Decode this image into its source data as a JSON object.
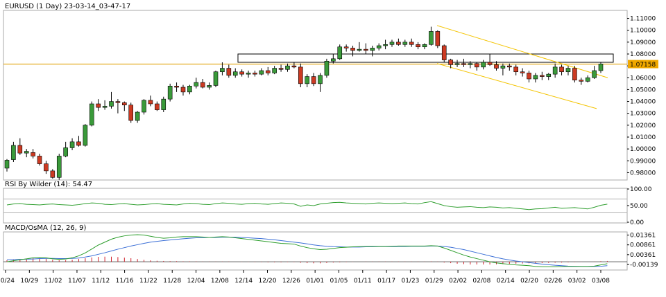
{
  "chart_data": {
    "type": "candlestick",
    "title": "EURUSD (1 Day) 23-03-14_03-47-17",
    "last_price_label": "1.07158",
    "last_price": 1.07158,
    "ylim": [
      0.975,
      1.115
    ],
    "y_ticks": [
      "1.11000",
      "1.10000",
      "1.09000",
      "1.08000",
      "1.07000",
      "1.06000",
      "1.05000",
      "1.04000",
      "1.03000",
      "1.02000",
      "1.01000",
      "1.00000",
      "0.99000",
      "0.98000"
    ],
    "x_ticks": [
      "10/24",
      "10/29",
      "11/02",
      "11/07",
      "11/12",
      "11/16",
      "11/22",
      "11/28",
      "12/04",
      "12/08",
      "12/14",
      "12/20",
      "12/26",
      "01/01",
      "01/05",
      "01/11",
      "01/17",
      "01/23",
      "01/29",
      "02/02",
      "02/08",
      "02/14",
      "02/20",
      "02/26",
      "03/02",
      "03/08"
    ],
    "candles": [
      {
        "o": 0.9838,
        "h": 0.9915,
        "l": 0.981,
        "c": 0.9905
      },
      {
        "o": 0.991,
        "h": 1.006,
        "l": 0.989,
        "c": 1.003
      },
      {
        "o": 1.003,
        "h": 1.009,
        "l": 0.995,
        "c": 0.9965
      },
      {
        "o": 0.9965,
        "h": 1.0,
        "l": 0.993,
        "c": 0.998
      },
      {
        "o": 0.997,
        "h": 1.0,
        "l": 0.992,
        "c": 0.994
      },
      {
        "o": 0.994,
        "h": 0.996,
        "l": 0.986,
        "c": 0.9875
      },
      {
        "o": 0.9875,
        "h": 0.99,
        "l": 0.979,
        "c": 0.9815
      },
      {
        "o": 0.9815,
        "h": 0.983,
        "l": 0.975,
        "c": 0.976
      },
      {
        "o": 0.976,
        "h": 0.996,
        "l": 0.974,
        "c": 0.994
      },
      {
        "o": 0.994,
        "h": 1.006,
        "l": 0.993,
        "c": 1.001
      },
      {
        "o": 1.001,
        "h": 1.009,
        "l": 0.999,
        "c": 1.006
      },
      {
        "o": 1.006,
        "h": 1.011,
        "l": 1.002,
        "c": 1.003
      },
      {
        "o": 1.003,
        "h": 1.021,
        "l": 1.002,
        "c": 1.02
      },
      {
        "o": 1.02,
        "h": 1.04,
        "l": 1.019,
        "c": 1.038
      },
      {
        "o": 1.038,
        "h": 1.042,
        "l": 1.032,
        "c": 1.035
      },
      {
        "o": 1.035,
        "h": 1.041,
        "l": 1.033,
        "c": 1.036
      },
      {
        "o": 1.036,
        "h": 1.048,
        "l": 1.034,
        "c": 1.04
      },
      {
        "o": 1.04,
        "h": 1.042,
        "l": 1.03,
        "c": 1.039
      },
      {
        "o": 1.039,
        "h": 1.04,
        "l": 1.032,
        "c": 1.037
      },
      {
        "o": 1.037,
        "h": 1.039,
        "l": 1.022,
        "c": 1.024
      },
      {
        "o": 1.024,
        "h": 1.032,
        "l": 1.022,
        "c": 1.031
      },
      {
        "o": 1.031,
        "h": 1.042,
        "l": 1.029,
        "c": 1.041
      },
      {
        "o": 1.041,
        "h": 1.045,
        "l": 1.036,
        "c": 1.038
      },
      {
        "o": 1.038,
        "h": 1.04,
        "l": 1.032,
        "c": 1.033
      },
      {
        "o": 1.033,
        "h": 1.044,
        "l": 1.031,
        "c": 1.042
      },
      {
        "o": 1.042,
        "h": 1.055,
        "l": 1.04,
        "c": 1.053
      },
      {
        "o": 1.053,
        "h": 1.056,
        "l": 1.048,
        "c": 1.052
      },
      {
        "o": 1.052,
        "h": 1.054,
        "l": 1.045,
        "c": 1.048
      },
      {
        "o": 1.048,
        "h": 1.054,
        "l": 1.046,
        "c": 1.053
      },
      {
        "o": 1.053,
        "h": 1.06,
        "l": 1.051,
        "c": 1.056
      },
      {
        "o": 1.056,
        "h": 1.059,
        "l": 1.051,
        "c": 1.052
      },
      {
        "o": 1.052,
        "h": 1.056,
        "l": 1.05,
        "c": 1.0535
      },
      {
        "o": 1.0535,
        "h": 1.066,
        "l": 1.052,
        "c": 1.065
      },
      {
        "o": 1.065,
        "h": 1.073,
        "l": 1.062,
        "c": 1.068
      },
      {
        "o": 1.068,
        "h": 1.071,
        "l": 1.06,
        "c": 1.062
      },
      {
        "o": 1.062,
        "h": 1.068,
        "l": 1.06,
        "c": 1.065
      },
      {
        "o": 1.065,
        "h": 1.067,
        "l": 1.061,
        "c": 1.063
      },
      {
        "o": 1.063,
        "h": 1.066,
        "l": 1.06,
        "c": 1.064
      },
      {
        "o": 1.064,
        "h": 1.066,
        "l": 1.061,
        "c": 1.063
      },
      {
        "o": 1.063,
        "h": 1.068,
        "l": 1.062,
        "c": 1.066
      },
      {
        "o": 1.066,
        "h": 1.069,
        "l": 1.062,
        "c": 1.064
      },
      {
        "o": 1.064,
        "h": 1.07,
        "l": 1.063,
        "c": 1.068
      },
      {
        "o": 1.068,
        "h": 1.071,
        "l": 1.065,
        "c": 1.067
      },
      {
        "o": 1.067,
        "h": 1.072,
        "l": 1.065,
        "c": 1.07
      },
      {
        "o": 1.07,
        "h": 1.073,
        "l": 1.068,
        "c": 1.069
      },
      {
        "o": 1.069,
        "h": 1.072,
        "l": 1.052,
        "c": 1.055
      },
      {
        "o": 1.055,
        "h": 1.063,
        "l": 1.052,
        "c": 1.061
      },
      {
        "o": 1.061,
        "h": 1.064,
        "l": 1.053,
        "c": 1.055
      },
      {
        "o": 1.055,
        "h": 1.064,
        "l": 1.048,
        "c": 1.062
      },
      {
        "o": 1.062,
        "h": 1.076,
        "l": 1.06,
        "c": 1.074
      },
      {
        "o": 1.074,
        "h": 1.08,
        "l": 1.072,
        "c": 1.076
      },
      {
        "o": 1.076,
        "h": 1.088,
        "l": 1.075,
        "c": 1.086
      },
      {
        "o": 1.086,
        "h": 1.088,
        "l": 1.082,
        "c": 1.085
      },
      {
        "o": 1.085,
        "h": 1.087,
        "l": 1.078,
        "c": 1.083
      },
      {
        "o": 1.083,
        "h": 1.09,
        "l": 1.082,
        "c": 1.084
      },
      {
        "o": 1.084,
        "h": 1.089,
        "l": 1.08,
        "c": 1.083
      },
      {
        "o": 1.083,
        "h": 1.087,
        "l": 1.078,
        "c": 1.085
      },
      {
        "o": 1.085,
        "h": 1.089,
        "l": 1.083,
        "c": 1.087
      },
      {
        "o": 1.087,
        "h": 1.092,
        "l": 1.084,
        "c": 1.088
      },
      {
        "o": 1.088,
        "h": 1.092,
        "l": 1.086,
        "c": 1.09
      },
      {
        "o": 1.09,
        "h": 1.093,
        "l": 1.087,
        "c": 1.088
      },
      {
        "o": 1.088,
        "h": 1.092,
        "l": 1.086,
        "c": 1.09
      },
      {
        "o": 1.09,
        "h": 1.093,
        "l": 1.086,
        "c": 1.088
      },
      {
        "o": 1.088,
        "h": 1.09,
        "l": 1.084,
        "c": 1.086
      },
      {
        "o": 1.086,
        "h": 1.089,
        "l": 1.084,
        "c": 1.088
      },
      {
        "o": 1.088,
        "h": 1.103,
        "l": 1.087,
        "c": 1.099
      },
      {
        "o": 1.099,
        "h": 1.1,
        "l": 1.085,
        "c": 1.087
      },
      {
        "o": 1.087,
        "h": 1.088,
        "l": 1.073,
        "c": 1.075
      },
      {
        "o": 1.075,
        "h": 1.076,
        "l": 1.068,
        "c": 1.071
      },
      {
        "o": 1.071,
        "h": 1.075,
        "l": 1.069,
        "c": 1.072
      },
      {
        "o": 1.072,
        "h": 1.076,
        "l": 1.069,
        "c": 1.071
      },
      {
        "o": 1.071,
        "h": 1.074,
        "l": 1.068,
        "c": 1.072
      },
      {
        "o": 1.072,
        "h": 1.073,
        "l": 1.066,
        "c": 1.069
      },
      {
        "o": 1.069,
        "h": 1.075,
        "l": 1.067,
        "c": 1.073
      },
      {
        "o": 1.073,
        "h": 1.08,
        "l": 1.07,
        "c": 1.071
      },
      {
        "o": 1.071,
        "h": 1.074,
        "l": 1.066,
        "c": 1.068
      },
      {
        "o": 1.068,
        "h": 1.072,
        "l": 1.062,
        "c": 1.07
      },
      {
        "o": 1.07,
        "h": 1.072,
        "l": 1.066,
        "c": 1.069
      },
      {
        "o": 1.069,
        "h": 1.071,
        "l": 1.062,
        "c": 1.065
      },
      {
        "o": 1.065,
        "h": 1.068,
        "l": 1.061,
        "c": 1.064
      },
      {
        "o": 1.064,
        "h": 1.066,
        "l": 1.056,
        "c": 1.059
      },
      {
        "o": 1.059,
        "h": 1.064,
        "l": 1.056,
        "c": 1.062
      },
      {
        "o": 1.062,
        "h": 1.065,
        "l": 1.058,
        "c": 1.061
      },
      {
        "o": 1.061,
        "h": 1.064,
        "l": 1.058,
        "c": 1.063
      },
      {
        "o": 1.063,
        "h": 1.072,
        "l": 1.06,
        "c": 1.069
      },
      {
        "o": 1.069,
        "h": 1.071,
        "l": 1.062,
        "c": 1.065
      },
      {
        "o": 1.065,
        "h": 1.07,
        "l": 1.062,
        "c": 1.068
      },
      {
        "o": 1.068,
        "h": 1.07,
        "l": 1.056,
        "c": 1.058
      },
      {
        "o": 1.058,
        "h": 1.06,
        "l": 1.054,
        "c": 1.057
      },
      {
        "o": 1.057,
        "h": 1.062,
        "l": 1.056,
        "c": 1.06
      },
      {
        "o": 1.06,
        "h": 1.07,
        "l": 1.059,
        "c": 1.066
      },
      {
        "o": 1.066,
        "h": 1.073,
        "l": 1.064,
        "c": 1.0716
      }
    ],
    "resistance_box": {
      "from": 1.073,
      "to": 1.08
    },
    "horizontal_line": 1.0715,
    "channel": {
      "upper": [
        1.104,
        1.06
      ],
      "lower": [
        1.072,
        1.034
      ]
    },
    "rsi": {
      "label": "RSI By Wilder (14): 54.47",
      "value": 54.47,
      "ylim": [
        0,
        100
      ],
      "levels": [
        70,
        30
      ],
      "y_ticks": [
        "100.00",
        "50.00",
        "0.00"
      ],
      "values": [
        52,
        55,
        56,
        54,
        53,
        52,
        54,
        55,
        53,
        52,
        51,
        53,
        56,
        58,
        57,
        54,
        53,
        55,
        56,
        54,
        52,
        53,
        55,
        56,
        54,
        53,
        52,
        55,
        57,
        56,
        54,
        53,
        56,
        58,
        57,
        55,
        54,
        56,
        57,
        55,
        54,
        56,
        58,
        57,
        55,
        48,
        52,
        50,
        55,
        57,
        59,
        60,
        58,
        57,
        56,
        55,
        57,
        58,
        57,
        56,
        57,
        58,
        56,
        55,
        59,
        62,
        56,
        50,
        47,
        45,
        46,
        47,
        45,
        44,
        46,
        45,
        43,
        44,
        42,
        40,
        38,
        40,
        41,
        43,
        45,
        42,
        43,
        44,
        42,
        40,
        45,
        51,
        54.47
      ]
    },
    "macd": {
      "label": "MACD/OsMA (12, 26, 9)",
      "ylim": [
        -0.0035,
        0.0145
      ],
      "y_ticks": [
        "0.01361",
        "0.00861",
        "0.00361",
        "-0.00139"
      ],
      "macd_values": [
        0.0,
        0.0005,
        0.001,
        0.0015,
        0.002,
        0.0022,
        0.002,
        0.0015,
        0.0012,
        0.0014,
        0.002,
        0.003,
        0.0045,
        0.0065,
        0.0085,
        0.01,
        0.0115,
        0.0125,
        0.0132,
        0.0136,
        0.0138,
        0.0136,
        0.013,
        0.0124,
        0.012,
        0.0122,
        0.0126,
        0.0128,
        0.0128,
        0.0128,
        0.0126,
        0.0124,
        0.0126,
        0.0128,
        0.0126,
        0.0122,
        0.0118,
        0.0114,
        0.011,
        0.0106,
        0.0102,
        0.0098,
        0.0094,
        0.0092,
        0.009,
        0.008,
        0.0072,
        0.0066,
        0.0062,
        0.0064,
        0.0068,
        0.0072,
        0.0074,
        0.0076,
        0.0077,
        0.0078,
        0.0078,
        0.0078,
        0.0078,
        0.0079,
        0.008,
        0.008,
        0.008,
        0.008,
        0.008,
        0.0082,
        0.008,
        0.007,
        0.0058,
        0.0046,
        0.0034,
        0.0024,
        0.0016,
        0.0008,
        0.0,
        -0.0006,
        -0.001,
        -0.0013,
        -0.0016,
        -0.0018,
        -0.002,
        -0.0024,
        -0.0026,
        -0.0026,
        -0.0026,
        -0.0025,
        -0.0024,
        -0.0024,
        -0.0024,
        -0.0024,
        -0.0022,
        -0.0016,
        -0.001
      ],
      "signal_values": [
        0.001,
        0.0011,
        0.0012,
        0.0013,
        0.0014,
        0.0016,
        0.0017,
        0.0017,
        0.0016,
        0.0016,
        0.0017,
        0.0019,
        0.0024,
        0.003,
        0.0038,
        0.0046,
        0.0055,
        0.0064,
        0.0072,
        0.008,
        0.0087,
        0.0094,
        0.01,
        0.0104,
        0.0108,
        0.0111,
        0.0114,
        0.0117,
        0.012,
        0.0122,
        0.0123,
        0.0124,
        0.0124,
        0.0125,
        0.0125,
        0.0125,
        0.0124,
        0.0122,
        0.012,
        0.0118,
        0.0115,
        0.0112,
        0.0108,
        0.0104,
        0.01,
        0.0096,
        0.0091,
        0.0086,
        0.0082,
        0.0079,
        0.0077,
        0.0076,
        0.0075,
        0.0075,
        0.0075,
        0.0076,
        0.0076,
        0.0077,
        0.0077,
        0.0077,
        0.0078,
        0.0078,
        0.0079,
        0.0079,
        0.0079,
        0.008,
        0.008,
        0.0078,
        0.0074,
        0.0068,
        0.0062,
        0.0054,
        0.0046,
        0.0038,
        0.003,
        0.0022,
        0.0015,
        0.0009,
        0.0004,
        0.0,
        -0.0004,
        -0.0008,
        -0.0012,
        -0.0015,
        -0.0018,
        -0.002,
        -0.0022,
        -0.0023,
        -0.0024,
        -0.0024,
        -0.0024,
        -0.0023,
        -0.002
      ],
      "osma_values": [
        0.0008,
        0.0009,
        0.0012,
        0.0015,
        0.0018,
        0.0018,
        0.0015,
        0.001,
        0.0008,
        0.0008,
        0.001,
        0.0014,
        0.0018,
        0.0022,
        0.0025,
        0.0026,
        0.0026,
        0.0024,
        0.0021,
        0.0018,
        0.0014,
        0.001,
        0.0007,
        0.0005,
        0.0004,
        0.0003,
        0.0003,
        0.0002,
        0.0002,
        0.0002,
        0.0001,
        0.0001,
        0.0001,
        0.0001,
        0.0001,
        0.0,
        -0.0001,
        -0.0001,
        -0.0002,
        -0.0002,
        -0.0003,
        -0.0003,
        -0.0003,
        -0.0002,
        -0.0002,
        -0.0005,
        -0.0007,
        -0.0008,
        -0.0008,
        -0.0006,
        -0.0004,
        -0.0003,
        -0.0002,
        -0.0001,
        0.0,
        0.0001,
        0.0001,
        0.0001,
        0.0001,
        0.0001,
        0.0001,
        0.0001,
        0.0001,
        0.0001,
        0.0001,
        0.0002,
        0.0001,
        -0.0004,
        -0.0007,
        -0.001,
        -0.0012,
        -0.0014,
        -0.0014,
        -0.0014,
        -0.0014,
        -0.0013,
        -0.0012,
        -0.0011,
        -0.001,
        -0.0009,
        -0.0008,
        -0.0008,
        -0.0007,
        -0.0006,
        -0.0005,
        -0.0004,
        -0.0003,
        -0.0002,
        -0.0001,
        0.0,
        0.0001,
        0.0003,
        0.0004
      ]
    }
  },
  "colors": {
    "bull": "#3a9a3a",
    "bear": "#cc3a22",
    "price_line": "#e0a000",
    "price_label_bg": "#f0a800",
    "channel": "#f4c400",
    "rsi_line": "#2e9e2e",
    "macd_line": "#2e9e2e",
    "signal_line": "#3b6fd6",
    "osma_bar": "#d0202a",
    "grid": "#c8c8c8",
    "rsi_level": "#b0b0b0"
  }
}
